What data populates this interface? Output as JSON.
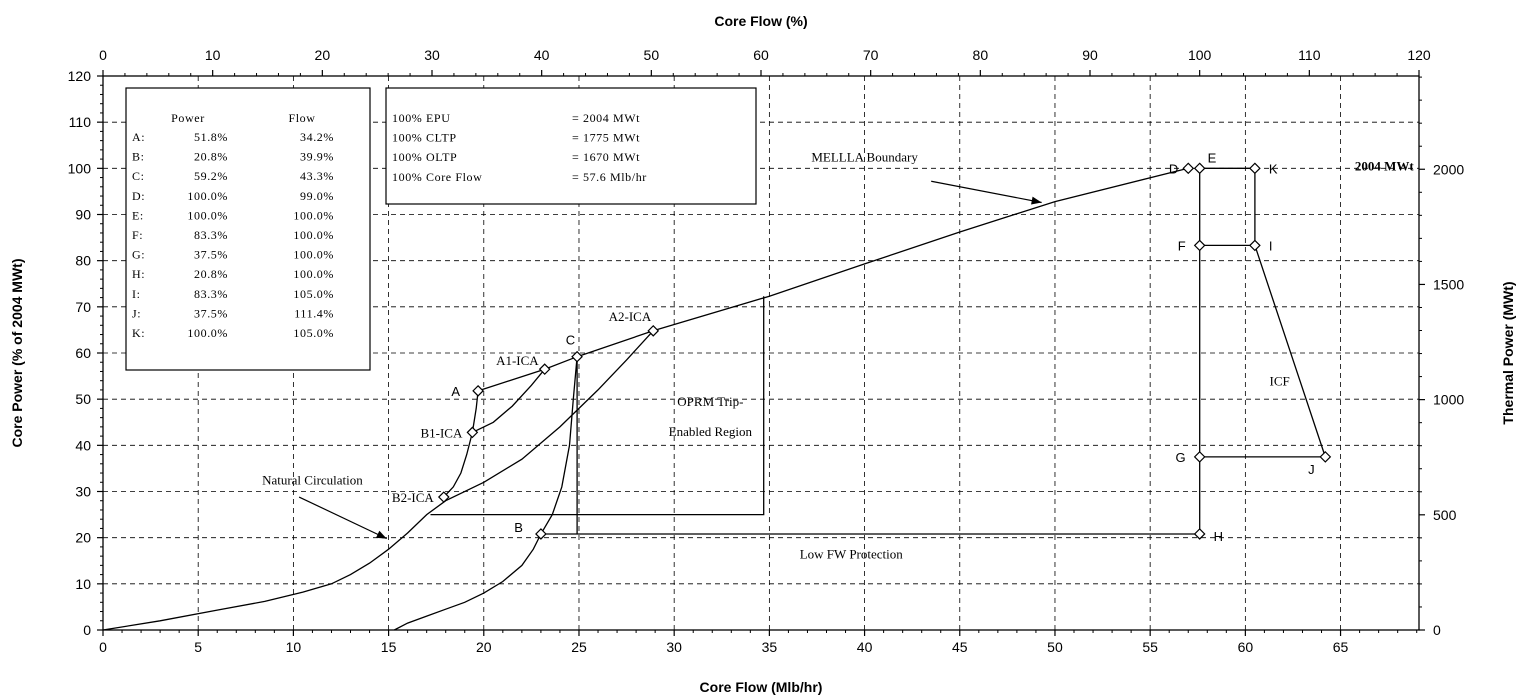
{
  "chart_data": {
    "type": "line",
    "title": "",
    "x_bottom": {
      "label": "Core Flow (Mlb/hr)",
      "range": [
        0,
        69.12
      ],
      "ticks": [
        0,
        5,
        10,
        15,
        20,
        25,
        30,
        35,
        40,
        45,
        50,
        55,
        60,
        65
      ]
    },
    "x_top": {
      "label": "Core Flow (%)",
      "range": [
        0,
        120
      ],
      "ticks": [
        0,
        10,
        20,
        30,
        40,
        50,
        60,
        70,
        80,
        90,
        100,
        110,
        120
      ]
    },
    "y_left": {
      "label": "Core Power (% of 2004 MWt)",
      "range": [
        0,
        120
      ],
      "ticks": [
        0,
        10,
        20,
        30,
        40,
        50,
        60,
        70,
        80,
        90,
        100,
        110,
        120
      ]
    },
    "y_right": {
      "label": "Thermal Power (MWt)",
      "range": [
        0,
        2404.8
      ],
      "ticks": [
        0,
        500,
        1000,
        1500,
        2000
      ]
    },
    "grid": true,
    "points": [
      {
        "label": "A",
        "x": 19.7,
        "y": 51.8
      },
      {
        "label": "B",
        "x": 23.0,
        "y": 20.8
      },
      {
        "label": "C",
        "x": 24.9,
        "y": 59.2
      },
      {
        "label": "D",
        "x": 57.0,
        "y": 100.0
      },
      {
        "label": "E",
        "x": 57.6,
        "y": 100.0
      },
      {
        "label": "F",
        "x": 57.6,
        "y": 83.3
      },
      {
        "label": "G",
        "x": 57.6,
        "y": 37.5
      },
      {
        "label": "H",
        "x": 57.6,
        "y": 20.8
      },
      {
        "label": "I",
        "x": 60.5,
        "y": 83.3
      },
      {
        "label": "J",
        "x": 64.2,
        "y": 37.5
      },
      {
        "label": "K",
        "x": 60.5,
        "y": 100.0
      },
      {
        "label": "A1-ICA",
        "x": 23.2,
        "y": 56.5
      },
      {
        "label": "A2-ICA",
        "x": 28.9,
        "y": 64.8
      },
      {
        "label": "B1-ICA",
        "x": 19.4,
        "y": 42.8
      },
      {
        "label": "B2-ICA",
        "x": 17.9,
        "y": 28.8
      }
    ],
    "series": [
      {
        "name": "MELLLA Boundary",
        "x": [
          19.7,
          23.2,
          24.9,
          28.9,
          35,
          40,
          45,
          50,
          57.0
        ],
        "y": [
          51.8,
          56.5,
          59.2,
          64.8,
          72.3,
          79.3,
          86.2,
          92.8,
          100.0
        ]
      },
      {
        "name": "Natural Circulation",
        "x": [
          0,
          3,
          6,
          8.5,
          10.5,
          12,
          13,
          14,
          15,
          16,
          17,
          18,
          20,
          22,
          24,
          26,
          27.5,
          28.9
        ],
        "y": [
          0,
          2,
          4.3,
          6.2,
          8.2,
          10,
          12,
          14.5,
          17.5,
          21,
          25,
          28,
          32,
          37,
          44,
          52,
          58.5,
          64.8
        ]
      },
      {
        "name": "",
        "x": [
          15.3,
          16,
          17,
          18,
          19,
          20,
          21,
          22,
          22.6,
          23.0,
          23.6,
          24.1,
          24.5,
          24.7,
          24.9
        ],
        "y": [
          0,
          1.5,
          3,
          4.5,
          6,
          8,
          10.5,
          14,
          17.5,
          20.8,
          25,
          31,
          40,
          50,
          59.2
        ]
      },
      {
        "name": "",
        "x": [
          17.9,
          18.4,
          18.8,
          19.1,
          19.4,
          19.6,
          19.7
        ],
        "y": [
          28.8,
          31,
          34,
          38,
          42.8,
          48,
          51.8
        ]
      },
      {
        "name": "",
        "x": [
          19.4,
          20.5,
          21.5,
          22.5,
          23.2
        ],
        "y": [
          42.8,
          45,
          48.5,
          53,
          56.5
        ]
      },
      {
        "name": "",
        "x": [
          24.9,
          24.9
        ],
        "y": [
          59.2,
          20.8
        ]
      },
      {
        "name": "",
        "x": [
          23.0,
          57.6
        ],
        "y": [
          20.8,
          20.8
        ]
      },
      {
        "name": "",
        "x": [
          57.6,
          57.6
        ],
        "y": [
          20.8,
          100
        ]
      },
      {
        "name": "",
        "x": [
          57.6,
          60.5,
          60.5
        ],
        "y": [
          100,
          100,
          83.3
        ]
      },
      {
        "name": "",
        "x": [
          57.6,
          60.5,
          64.2,
          57.6
        ],
        "y": [
          83.3,
          83.3,
          37.5,
          37.5
        ]
      },
      {
        "name": "",
        "x": [
          17.2,
          34.7,
          34.7
        ],
        "y": [
          25,
          25,
          72.3
        ]
      }
    ],
    "annotations": [
      {
        "text": "MELLLA Boundary",
        "x": 40,
        "y": 101.5
      },
      {
        "text": "Natural Circulation",
        "x": 11,
        "y": 31.5
      },
      {
        "text": "OPRM Trip-",
        "x": 31.9,
        "y": 48.5
      },
      {
        "text": "Enabled Region",
        "x": 31.9,
        "y": 42
      },
      {
        "text": "Low FW Protection",
        "x": 39.3,
        "y": 15.5
      },
      {
        "text": "ICF",
        "x": 61.8,
        "y": 53
      },
      {
        "text": "2004 MWt",
        "x": 67.3,
        "y": 99.5
      }
    ],
    "power_flow_table": {
      "headers": [
        "Power",
        "Flow"
      ],
      "rows": [
        {
          "id": "A:",
          "power": "51.8%",
          "flow": "34.2%"
        },
        {
          "id": "B:",
          "power": "20.8%",
          "flow": "39.9%"
        },
        {
          "id": "C:",
          "power": "59.2%",
          "flow": "43.3%"
        },
        {
          "id": "D:",
          "power": "100.0%",
          "flow": "99.0%"
        },
        {
          "id": "E:",
          "power": "100.0%",
          "flow": "100.0%"
        },
        {
          "id": "F:",
          "power": "83.3%",
          "flow": "100.0%"
        },
        {
          "id": "G:",
          "power": "37.5%",
          "flow": "100.0%"
        },
        {
          "id": "H:",
          "power": "20.8%",
          "flow": "100.0%"
        },
        {
          "id": "I:",
          "power": "83.3%",
          "flow": "105.0%"
        },
        {
          "id": "J:",
          "power": "37.5%",
          "flow": "111.4%"
        },
        {
          "id": "K:",
          "power": "100.0%",
          "flow": "105.0%"
        }
      ]
    },
    "reference_table": [
      {
        "name": "100% EPU",
        "value": "= 2004 MWt"
      },
      {
        "name": "100% CLTP",
        "value": "= 1775 MWt"
      },
      {
        "name": "100% OLTP",
        "value": "= 1670 MWt"
      },
      {
        "name": "100% Core Flow",
        "value": "= 57.6 Mlb/hr"
      }
    ]
  }
}
